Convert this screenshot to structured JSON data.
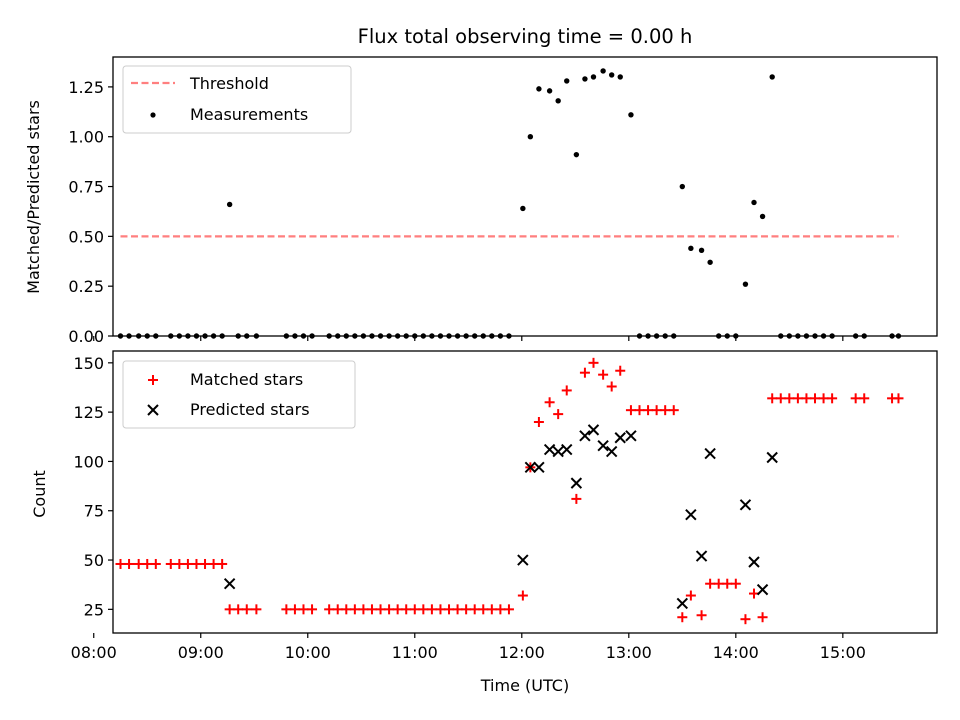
{
  "chart_data": [
    {
      "type": "scatter",
      "title": "Flux total observing time = 0.00 h",
      "xlabel": "",
      "ylabel": "Matched/Predicted stars",
      "xlim": [
        8.18,
        15.88
      ],
      "ylim": [
        0.0,
        1.4
      ],
      "yticks": [
        0.0,
        0.25,
        0.5,
        0.75,
        1.0,
        1.25
      ],
      "ytick_labels": [
        "0.00",
        "0.25",
        "0.50",
        "0.75",
        "1.00",
        "1.25"
      ],
      "legend_position": "top-left",
      "series": [
        {
          "name": "Threshold",
          "kind": "line",
          "style": "dashed",
          "color": "#ff7f7f",
          "x": [
            8.25,
            15.52
          ],
          "y": [
            0.5,
            0.5
          ]
        },
        {
          "name": "Measurements",
          "kind": "points",
          "marker": "dot",
          "color": "#000000",
          "x": [
            8.25,
            8.33,
            8.42,
            8.5,
            8.58,
            8.72,
            8.8,
            8.88,
            8.96,
            9.04,
            9.12,
            9.2,
            9.27,
            9.35,
            9.43,
            9.52,
            9.8,
            9.88,
            9.96,
            10.04,
            10.2,
            10.28,
            10.36,
            10.44,
            10.52,
            10.6,
            10.68,
            10.76,
            10.84,
            10.92,
            11.0,
            11.08,
            11.16,
            11.24,
            11.32,
            11.4,
            11.48,
            11.56,
            11.64,
            11.72,
            11.8,
            11.88,
            12.01,
            12.08,
            12.16,
            12.26,
            12.34,
            12.42,
            12.51,
            12.59,
            12.67,
            12.76,
            12.84,
            12.92,
            13.02,
            13.1,
            13.18,
            13.26,
            13.34,
            13.42,
            13.5,
            13.58,
            13.68,
            13.76,
            13.84,
            13.92,
            14.0,
            14.09,
            14.17,
            14.25,
            14.34,
            14.42,
            14.5,
            14.58,
            14.66,
            14.74,
            14.82,
            14.9,
            15.12,
            15.2,
            15.46,
            15.52
          ],
          "y": [
            0.0,
            0.0,
            0.0,
            0.0,
            0.0,
            0.0,
            0.0,
            0.0,
            0.0,
            0.0,
            0.0,
            0.0,
            0.66,
            0.0,
            0.0,
            0.0,
            0.0,
            0.0,
            0.0,
            0.0,
            0.0,
            0.0,
            0.0,
            0.0,
            0.0,
            0.0,
            0.0,
            0.0,
            0.0,
            0.0,
            0.0,
            0.0,
            0.0,
            0.0,
            0.0,
            0.0,
            0.0,
            0.0,
            0.0,
            0.0,
            0.0,
            0.0,
            0.64,
            1.0,
            1.24,
            1.23,
            1.18,
            1.28,
            0.91,
            1.29,
            1.3,
            1.33,
            1.31,
            1.3,
            1.11,
            0.0,
            0.0,
            0.0,
            0.0,
            0.0,
            0.75,
            0.44,
            0.43,
            0.37,
            0.0,
            0.0,
            0.0,
            0.26,
            0.67,
            0.6,
            1.3,
            0.0,
            0.0,
            0.0,
            0.0,
            0.0,
            0.0,
            0.0,
            0.0,
            0.0,
            0.0,
            0.0
          ]
        }
      ]
    },
    {
      "type": "scatter",
      "title": "",
      "xlabel": "Time (UTC)",
      "ylabel": "Count",
      "xlim": [
        8.18,
        15.88
      ],
      "ylim": [
        13.0,
        156.0
      ],
      "yticks": [
        25,
        50,
        75,
        100,
        125,
        150
      ],
      "ytick_labels": [
        "25",
        "50",
        "75",
        "100",
        "125",
        "150"
      ],
      "xticks": [
        8,
        9,
        10,
        11,
        12,
        13,
        14,
        15
      ],
      "xtick_labels": [
        "08:00",
        "09:00",
        "10:00",
        "11:00",
        "12:00",
        "13:00",
        "14:00",
        "15:00"
      ],
      "legend_position": "top-left",
      "series": [
        {
          "name": "Matched stars",
          "kind": "points",
          "marker": "plus",
          "color": "#ff0000",
          "x": [
            8.25,
            8.33,
            8.42,
            8.5,
            8.58,
            8.72,
            8.8,
            8.88,
            8.96,
            9.04,
            9.12,
            9.2,
            9.27,
            9.35,
            9.43,
            9.52,
            9.8,
            9.88,
            9.96,
            10.04,
            10.2,
            10.28,
            10.36,
            10.44,
            10.52,
            10.6,
            10.68,
            10.76,
            10.84,
            10.92,
            11.0,
            11.08,
            11.16,
            11.24,
            11.32,
            11.4,
            11.48,
            11.56,
            11.64,
            11.72,
            11.8,
            11.88,
            12.01,
            12.08,
            12.16,
            12.26,
            12.34,
            12.42,
            12.51,
            12.59,
            12.67,
            12.76,
            12.84,
            12.92,
            13.02,
            13.1,
            13.18,
            13.26,
            13.34,
            13.42,
            13.5,
            13.58,
            13.68,
            13.76,
            13.84,
            13.92,
            14.0,
            14.09,
            14.17,
            14.25,
            14.34,
            14.42,
            14.5,
            14.58,
            14.66,
            14.74,
            14.82,
            14.9,
            15.12,
            15.2,
            15.46,
            15.52
          ],
          "y": [
            48,
            48,
            48,
            48,
            48,
            48,
            48,
            48,
            48,
            48,
            48,
            48,
            25,
            25,
            25,
            25,
            25,
            25,
            25,
            25,
            25,
            25,
            25,
            25,
            25,
            25,
            25,
            25,
            25,
            25,
            25,
            25,
            25,
            25,
            25,
            25,
            25,
            25,
            25,
            25,
            25,
            25,
            32,
            97,
            120,
            130,
            124,
            136,
            81,
            145,
            150,
            144,
            138,
            146,
            126,
            126,
            126,
            126,
            126,
            126,
            21,
            32,
            22,
            38,
            38,
            38,
            38,
            20,
            33,
            21,
            132,
            132,
            132,
            132,
            132,
            132,
            132,
            132,
            132,
            132,
            132,
            132
          ]
        },
        {
          "name": "Predicted stars",
          "kind": "points",
          "marker": "x",
          "color": "#000000",
          "x": [
            9.27,
            12.01,
            12.08,
            12.16,
            12.26,
            12.34,
            12.42,
            12.51,
            12.59,
            12.67,
            12.76,
            12.84,
            12.92,
            13.02,
            13.5,
            13.58,
            13.68,
            13.76,
            14.09,
            14.17,
            14.25,
            14.34
          ],
          "y": [
            38,
            50,
            97,
            97,
            106,
            105,
            106,
            89,
            113,
            116,
            108,
            105,
            112,
            113,
            28,
            73,
            52,
            104,
            78,
            49,
            35,
            102
          ]
        }
      ]
    }
  ]
}
